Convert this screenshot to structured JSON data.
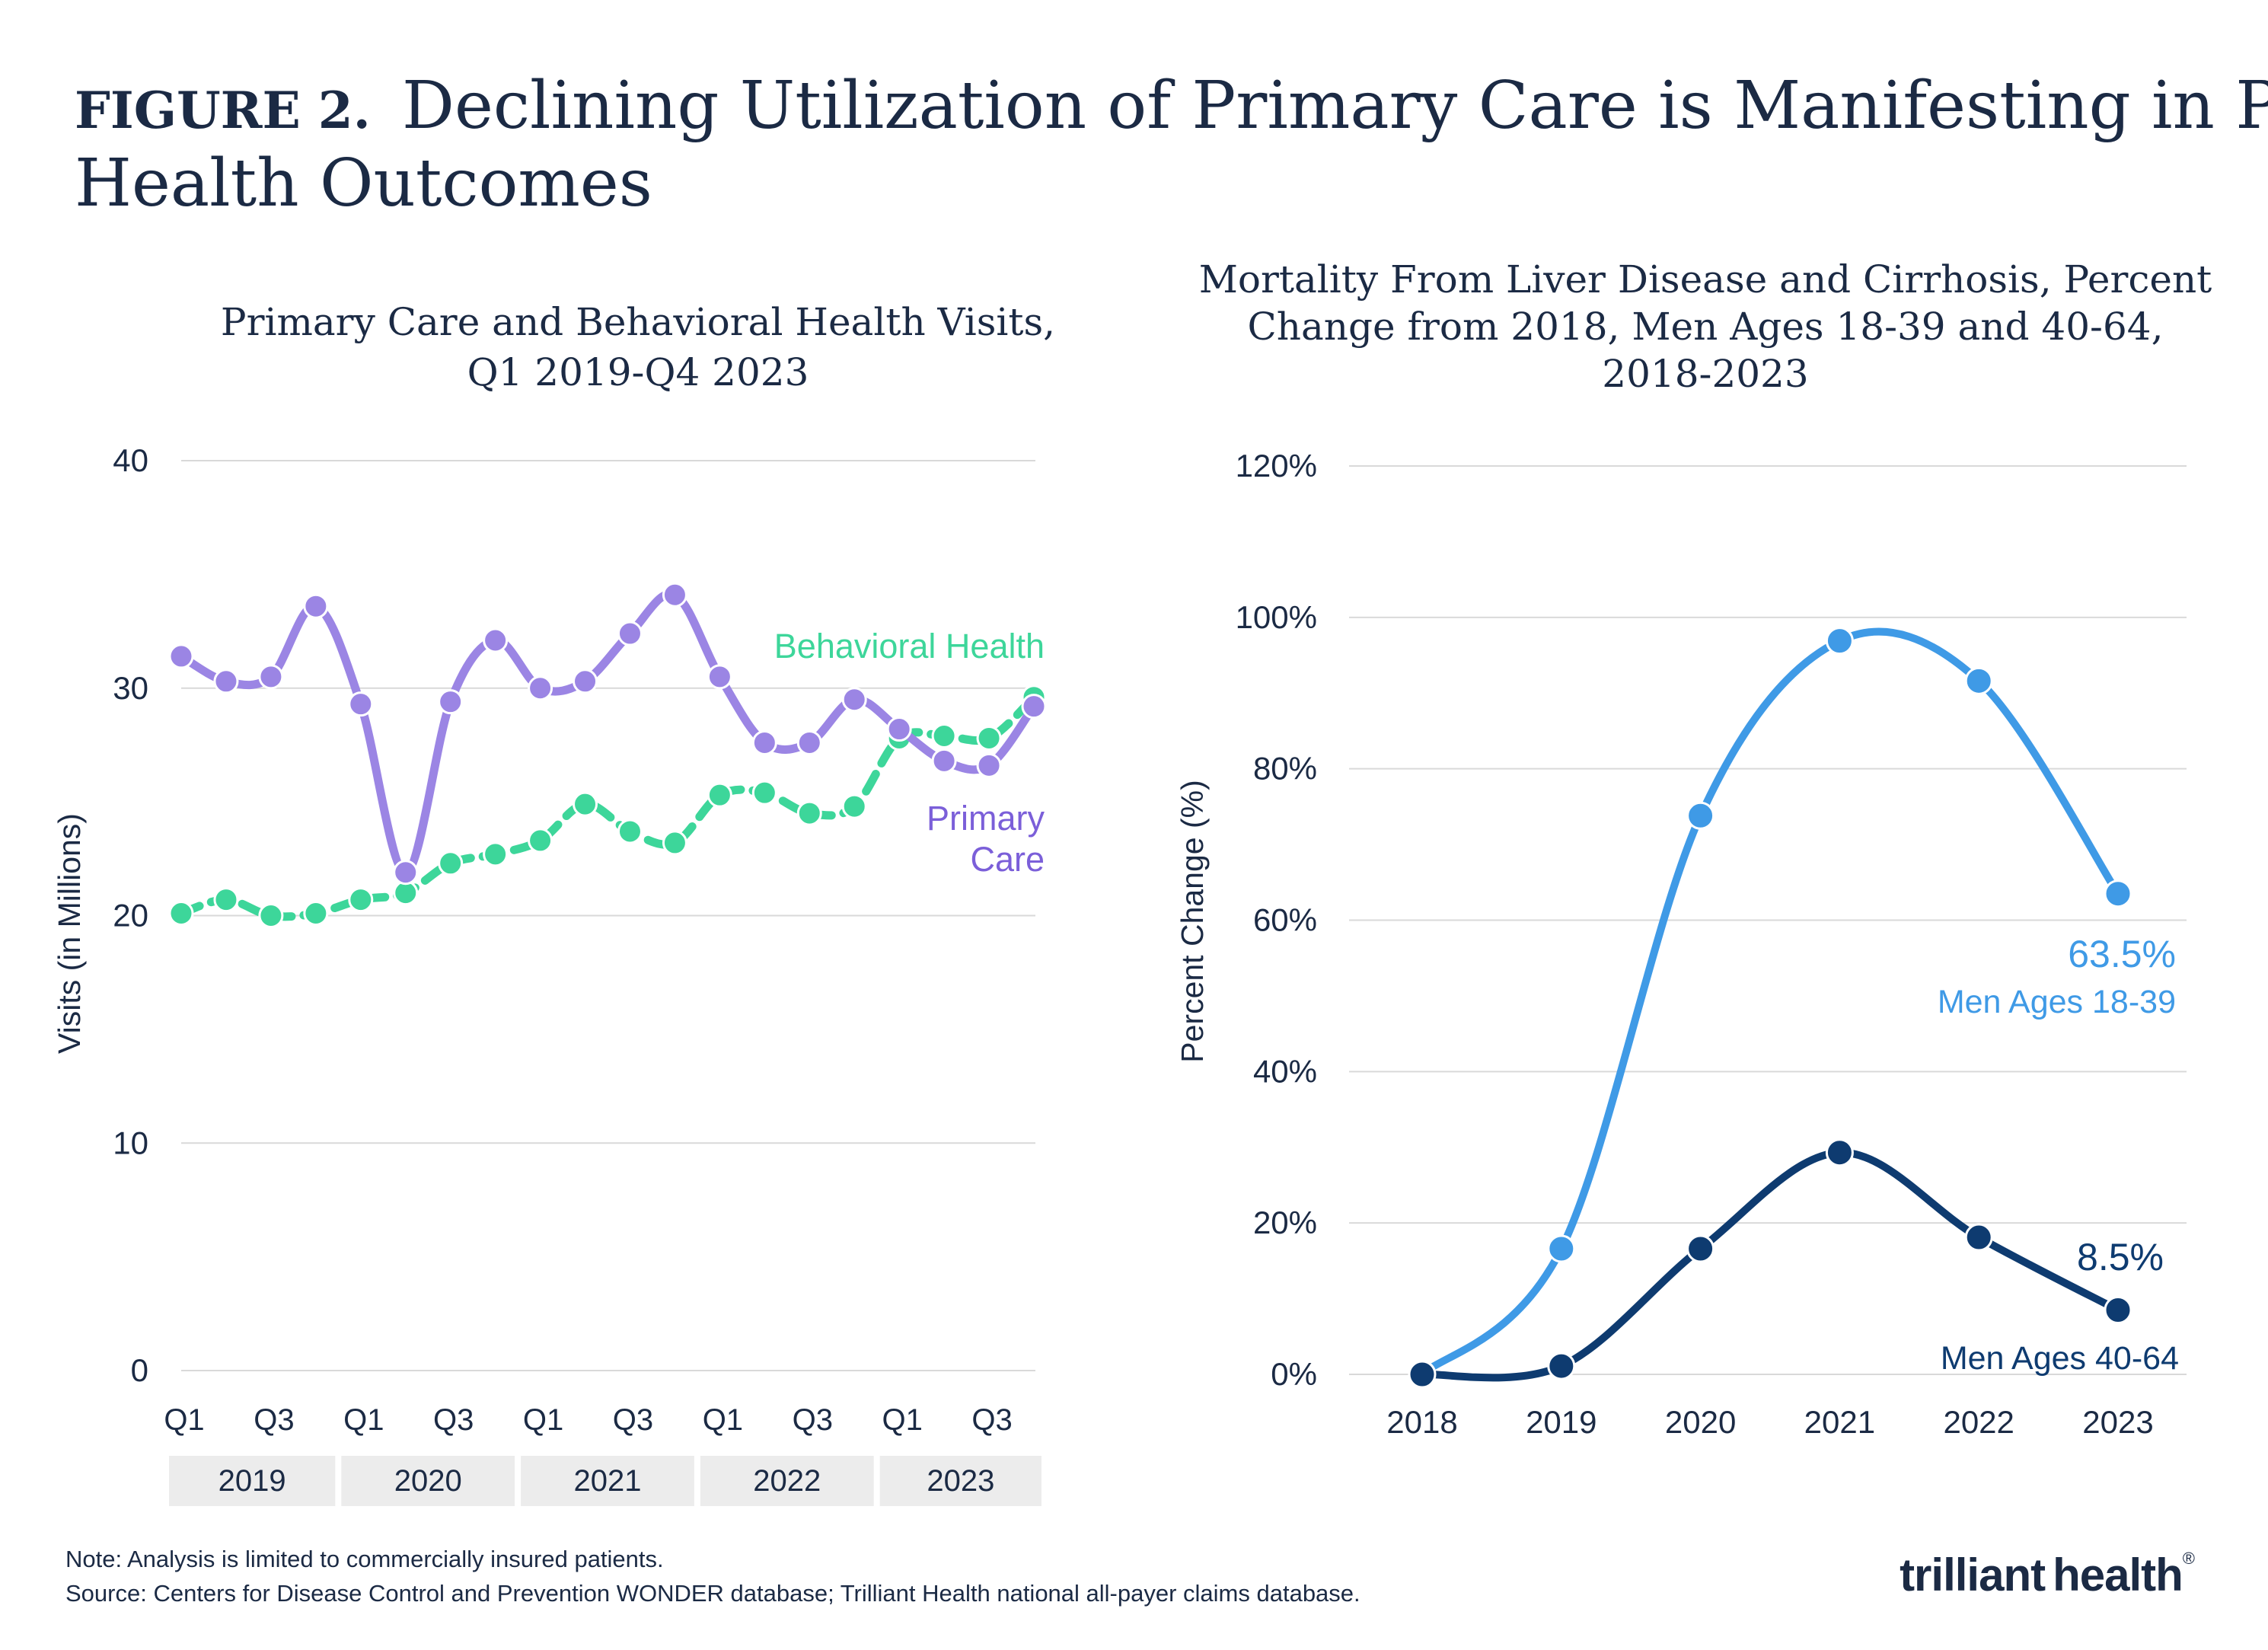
{
  "figure": {
    "label": "FIGURE 2.",
    "title_line1": "Declining Utilization of Primary Care is Manifesting in Poor",
    "title_line2": "Health Outcomes"
  },
  "footer": {
    "note": "Note: Analysis is limited to commercially insured patients.",
    "source": "Source: Centers for Disease Control and Prevention WONDER database; Trilliant Health national all-payer claims database."
  },
  "logo": {
    "text": "trilliant health",
    "text_a": "trilliant",
    "text_b": "health",
    "mark": "®"
  },
  "colors": {
    "primary_care": "#9b85e4",
    "behavioral_health": "#3dd69a",
    "men_18_39": "#3f9ae6",
    "men_40_64": "#0e3b70",
    "grid": "#d9d9d9",
    "text": "#1b2a44",
    "year_band": "#ececec"
  },
  "chart_data": [
    {
      "type": "line",
      "title_line1": "Primary Care and Behavioral Health Visits,",
      "title_line2": "Q1 2019-Q4 2023",
      "ylabel": "Visits (in Millions)",
      "xlabel": "",
      "ylim": [
        0,
        40
      ],
      "yticks": [
        "0",
        "10",
        "20",
        "30",
        "40"
      ],
      "grid": true,
      "x_tick_labels": [
        "Q1",
        "Q3",
        "Q1",
        "Q3",
        "Q1",
        "Q3",
        "Q1",
        "Q3",
        "Q1",
        "Q3"
      ],
      "year_groups": [
        "2019",
        "2020",
        "2021",
        "2022",
        "2023"
      ],
      "categories": [
        "Q1 2019",
        "Q2 2019",
        "Q3 2019",
        "Q4 2019",
        "Q1 2020",
        "Q2 2020",
        "Q3 2020",
        "Q4 2020",
        "Q1 2021",
        "Q2 2021",
        "Q3 2021",
        "Q4 2021",
        "Q1 2022",
        "Q2 2022",
        "Q3 2022",
        "Q4 2022",
        "Q1 2023",
        "Q2 2023",
        "Q3 2023",
        "Q4 2023"
      ],
      "series": [
        {
          "name": "Primary Care",
          "label_line1": "Primary",
          "label_line2": "Care",
          "style": "solid",
          "values": [
            31.4,
            30.3,
            30.5,
            33.6,
            29.3,
            21.9,
            29.4,
            32.1,
            30.0,
            30.3,
            32.4,
            34.1,
            30.5,
            27.6,
            27.6,
            29.5,
            28.2,
            26.8,
            26.6,
            29.2
          ]
        },
        {
          "name": "Behavioral Health",
          "style": "dashed",
          "values": [
            20.1,
            20.7,
            20.0,
            20.1,
            20.7,
            21.0,
            22.3,
            22.7,
            23.3,
            24.9,
            23.7,
            23.2,
            25.3,
            25.4,
            24.5,
            24.8,
            27.8,
            27.9,
            27.8,
            29.6
          ]
        }
      ]
    },
    {
      "type": "line",
      "title_line1": "Mortality From Liver Disease and Cirrhosis, Percent",
      "title_line2": "Change from 2018, Men Ages 18-39 and 40-64,",
      "title_line3": "2018-2023",
      "ylabel": "Percent Change (%)",
      "xlabel": "",
      "ylim": [
        0,
        120
      ],
      "yticks": [
        "0%",
        "20%",
        "40%",
        "60%",
        "80%",
        "100%",
        "120%"
      ],
      "grid": true,
      "x": [
        "2018",
        "2019",
        "2020",
        "2021",
        "2022",
        "2023"
      ],
      "series": [
        {
          "name": "Men Ages 18-39",
          "end_label": "63.5%",
          "values": [
            0,
            16.6,
            73.8,
            96.9,
            91.6,
            63.5
          ]
        },
        {
          "name": "Men Ages 40-64",
          "end_label": "8.5%",
          "values": [
            0,
            1.1,
            16.6,
            29.3,
            18.1,
            8.5
          ]
        }
      ]
    }
  ]
}
